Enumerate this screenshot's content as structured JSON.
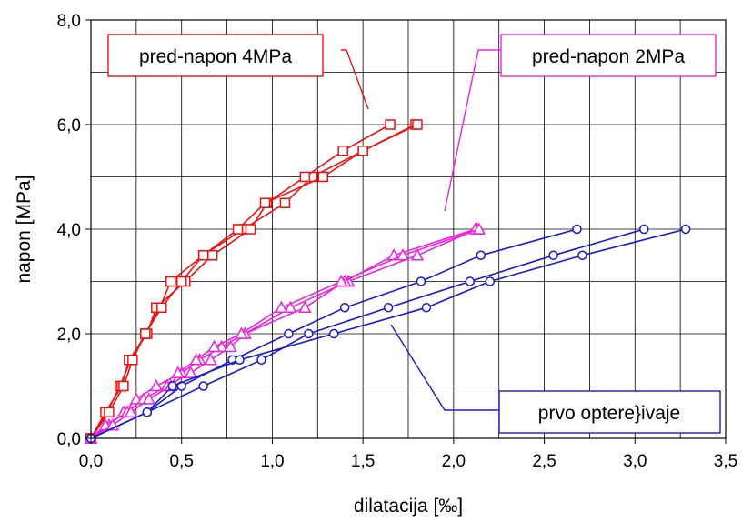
{
  "chart_data": {
    "type": "line",
    "title": "",
    "xlabel": "dilatacija [‰]",
    "ylabel": "napon [MPa]",
    "xlim": [
      0,
      3.5
    ],
    "ylim": [
      0,
      8
    ],
    "x_ticks": [
      "0,0",
      "0,5",
      "1,0",
      "1,5",
      "2,0",
      "2,5",
      "3,0",
      "3,5"
    ],
    "y_ticks": [
      "0,0",
      "2,0",
      "4,0",
      "6,0",
      "8,0"
    ],
    "grid": true,
    "colors": {
      "red": "#ee1111",
      "magenta": "#ee22dd",
      "blue": "#1a1acc"
    },
    "series": [
      {
        "color": "red",
        "marker": "square",
        "points": [
          [
            0,
            0
          ],
          [
            0.09,
            0.5
          ],
          [
            0.16,
            1.0
          ],
          [
            0.22,
            1.5
          ],
          [
            0.3,
            2.0
          ],
          [
            0.38,
            2.5
          ],
          [
            0.44,
            3.0
          ],
          [
            0.62,
            3.5
          ],
          [
            0.84,
            4.0
          ],
          [
            1.07,
            4.5
          ],
          [
            1.22,
            5.0
          ],
          [
            1.5,
            5.5
          ],
          [
            1.79,
            6.0
          ]
        ]
      },
      {
        "color": "red",
        "marker": "square",
        "points": [
          [
            0,
            0
          ],
          [
            0.08,
            0.5
          ],
          [
            0.17,
            1.0
          ],
          [
            0.21,
            1.5
          ],
          [
            0.31,
            2.0
          ],
          [
            0.36,
            2.5
          ],
          [
            0.52,
            3.0
          ],
          [
            0.67,
            3.5
          ],
          [
            0.88,
            4.0
          ],
          [
            0.97,
            4.5
          ],
          [
            1.18,
            5.0
          ],
          [
            1.39,
            5.5
          ],
          [
            1.65,
            6.0
          ]
        ]
      },
      {
        "color": "red",
        "marker": "square",
        "points": [
          [
            0,
            0
          ],
          [
            0.1,
            0.5
          ],
          [
            0.18,
            1.0
          ],
          [
            0.23,
            1.5
          ],
          [
            0.3,
            2.0
          ],
          [
            0.39,
            2.5
          ],
          [
            0.5,
            3.0
          ],
          [
            0.62,
            3.5
          ],
          [
            0.81,
            4.0
          ],
          [
            0.96,
            4.5
          ],
          [
            1.28,
            5.0
          ],
          [
            1.5,
            5.5
          ],
          [
            1.8,
            6.0
          ]
        ]
      },
      {
        "color": "magenta",
        "marker": "triangle",
        "points": [
          [
            0,
            0
          ],
          [
            0.1,
            0.25
          ],
          [
            0.18,
            0.5
          ],
          [
            0.25,
            0.75
          ],
          [
            0.36,
            1.0
          ],
          [
            0.5,
            1.25
          ],
          [
            0.6,
            1.5
          ],
          [
            0.72,
            1.75
          ],
          [
            0.85,
            2.0
          ],
          [
            1.1,
            2.5
          ],
          [
            1.42,
            3.0
          ],
          [
            1.8,
            3.5
          ],
          [
            2.13,
            4.0
          ]
        ]
      },
      {
        "color": "magenta",
        "marker": "triangle",
        "points": [
          [
            0,
            0
          ],
          [
            0.08,
            0.25
          ],
          [
            0.2,
            0.5
          ],
          [
            0.29,
            0.75
          ],
          [
            0.42,
            1.0
          ],
          [
            0.55,
            1.25
          ],
          [
            0.66,
            1.5
          ],
          [
            0.77,
            1.75
          ],
          [
            0.85,
            2.0
          ],
          [
            1.18,
            2.5
          ],
          [
            1.4,
            3.0
          ],
          [
            1.67,
            3.5
          ],
          [
            2.12,
            4.0
          ]
        ]
      },
      {
        "color": "magenta",
        "marker": "triangle",
        "points": [
          [
            0,
            0
          ],
          [
            0.12,
            0.25
          ],
          [
            0.22,
            0.5
          ],
          [
            0.32,
            0.75
          ],
          [
            0.44,
            1.0
          ],
          [
            0.48,
            1.25
          ],
          [
            0.58,
            1.5
          ],
          [
            0.68,
            1.75
          ],
          [
            0.83,
            2.0
          ],
          [
            1.05,
            2.5
          ],
          [
            1.38,
            3.0
          ],
          [
            1.72,
            3.5
          ],
          [
            2.14,
            4.0
          ]
        ]
      },
      {
        "color": "blue",
        "marker": "circle",
        "points": [
          [
            0,
            0
          ],
          [
            0.31,
            0.5
          ],
          [
            0.5,
            1.0
          ],
          [
            0.78,
            1.5
          ],
          [
            1.09,
            2.0
          ],
          [
            1.4,
            2.5
          ],
          [
            1.82,
            3.0
          ],
          [
            2.15,
            3.5
          ],
          [
            2.68,
            4.0
          ]
        ]
      },
      {
        "color": "blue",
        "marker": "circle",
        "points": [
          [
            0,
            0
          ],
          [
            0.31,
            0.5
          ],
          [
            0.62,
            1.0
          ],
          [
            0.94,
            1.5
          ],
          [
            1.2,
            2.0
          ],
          [
            1.64,
            2.5
          ],
          [
            2.09,
            3.0
          ],
          [
            2.55,
            3.5
          ],
          [
            3.05,
            4.0
          ]
        ]
      },
      {
        "color": "blue",
        "marker": "circle",
        "points": [
          [
            0,
            0
          ],
          [
            0.31,
            0.5
          ],
          [
            0.45,
            1.0
          ],
          [
            0.82,
            1.5
          ],
          [
            1.34,
            2.0
          ],
          [
            1.85,
            2.5
          ],
          [
            2.2,
            3.0
          ],
          [
            2.71,
            3.5
          ],
          [
            3.28,
            4.0
          ]
        ]
      }
    ],
    "annotations": [
      {
        "text": "pred-napon 4MPa",
        "color": "red",
        "position": "top-left"
      },
      {
        "text": "pred-napon 2MPa",
        "color": "magenta",
        "position": "top-right"
      },
      {
        "text": "prvo optere}ivaje",
        "color": "blue",
        "position": "bottom-right"
      }
    ]
  }
}
